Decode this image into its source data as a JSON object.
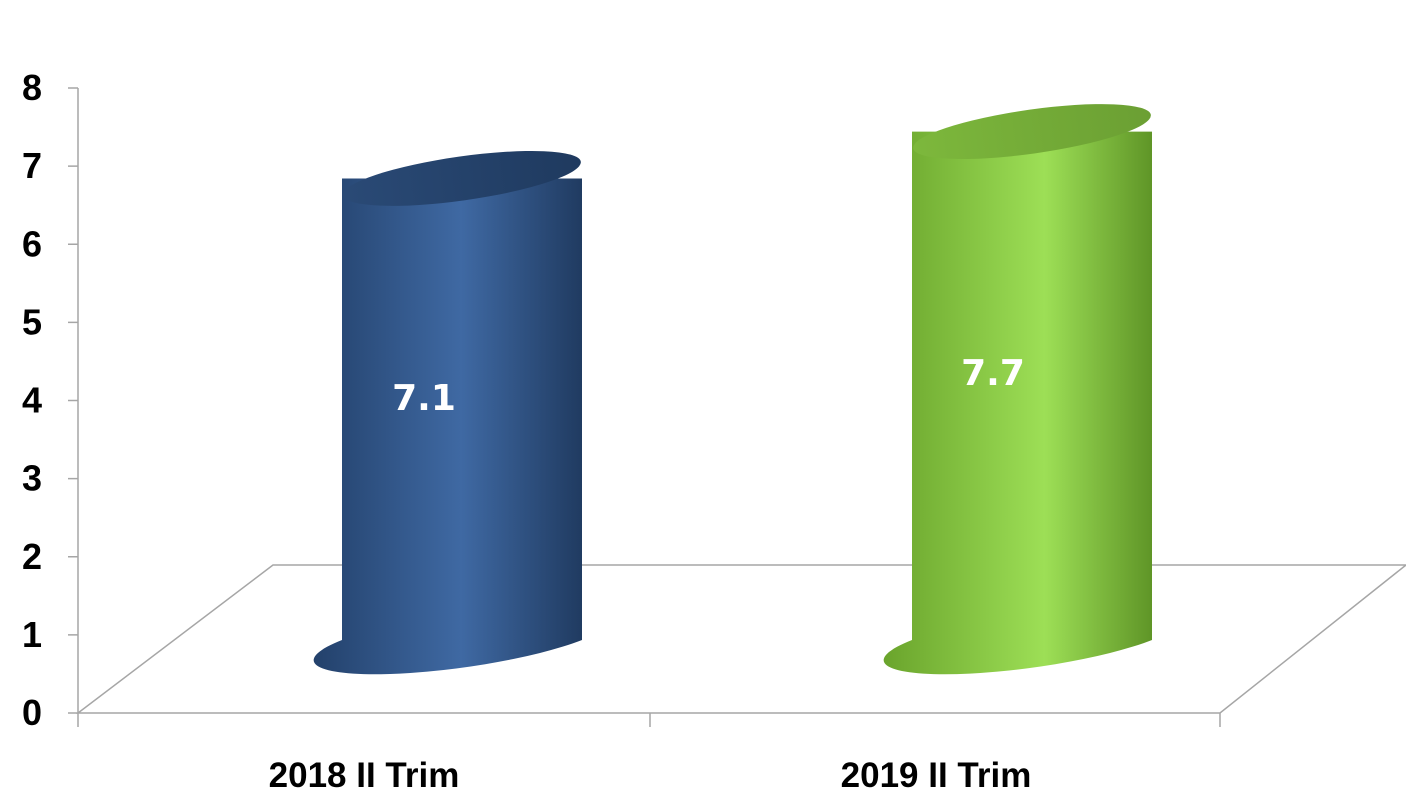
{
  "chart_data": {
    "type": "bar",
    "style": "3d-cylinder",
    "categories": [
      "2018 II Trim",
      "2019 II Trim"
    ],
    "values": [
      7.1,
      7.7
    ],
    "data_labels": [
      "7.1",
      "7.7"
    ],
    "colors": [
      "#3b6298",
      "#8ccf45"
    ],
    "ylim": [
      0,
      8
    ],
    "yticks": [
      "0",
      "1",
      "2",
      "3",
      "4",
      "5",
      "6",
      "7",
      "8"
    ],
    "title": "",
    "xlabel": "",
    "ylabel": "",
    "grid": false,
    "legend": "none"
  }
}
